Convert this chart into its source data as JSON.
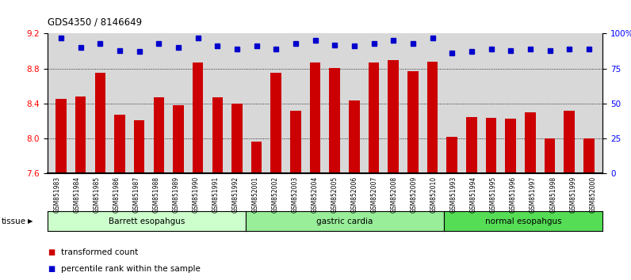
{
  "title": "GDS4350 / 8146649",
  "samples": [
    "GSM851983",
    "GSM851984",
    "GSM851985",
    "GSM851986",
    "GSM851987",
    "GSM851988",
    "GSM851989",
    "GSM851990",
    "GSM851991",
    "GSM851992",
    "GSM852001",
    "GSM852002",
    "GSM852003",
    "GSM852004",
    "GSM852005",
    "GSM852006",
    "GSM852007",
    "GSM852008",
    "GSM852009",
    "GSM852010",
    "GSM851993",
    "GSM851994",
    "GSM851995",
    "GSM851996",
    "GSM851997",
    "GSM851998",
    "GSM851999",
    "GSM852000"
  ],
  "bar_values": [
    8.45,
    8.48,
    8.75,
    8.27,
    8.21,
    8.47,
    8.38,
    8.87,
    8.47,
    8.4,
    7.97,
    8.75,
    8.32,
    8.87,
    8.81,
    8.44,
    8.87,
    8.9,
    8.77,
    8.88,
    8.02,
    8.25,
    8.24,
    8.23,
    8.3,
    8.0,
    8.32,
    8.0
  ],
  "percentile_values": [
    97,
    90,
    93,
    88,
    87,
    93,
    90,
    97,
    91,
    89,
    91,
    89,
    93,
    95,
    92,
    91,
    93,
    95,
    93,
    97,
    86,
    87,
    89,
    88,
    89,
    88,
    89,
    89
  ],
  "bar_color": "#cc0000",
  "dot_color": "#0000cc",
  "ylim_left": [
    7.6,
    9.2
  ],
  "ylim_right": [
    0,
    100
  ],
  "yticks_left": [
    7.6,
    8.0,
    8.4,
    8.8,
    9.2
  ],
  "yticks_right": [
    0,
    25,
    50,
    75,
    100
  ],
  "ytick_labels_right": [
    "0",
    "25",
    "50",
    "75",
    "100%"
  ],
  "grid_values": [
    8.0,
    8.4,
    8.8
  ],
  "group_labels": [
    "Barrett esopahgus",
    "gastric cardia",
    "normal esopahgus"
  ],
  "group_starts": [
    0,
    10,
    20
  ],
  "group_ends": [
    10,
    20,
    28
  ],
  "group_colors": [
    "#ccffcc",
    "#99ee99",
    "#55dd55"
  ],
  "tissue_label": "tissue",
  "bg_color": "#d8d8d8",
  "legend_labels": [
    "transformed count",
    "percentile rank within the sample"
  ],
  "legend_colors": [
    "#cc0000",
    "#0000cc"
  ]
}
